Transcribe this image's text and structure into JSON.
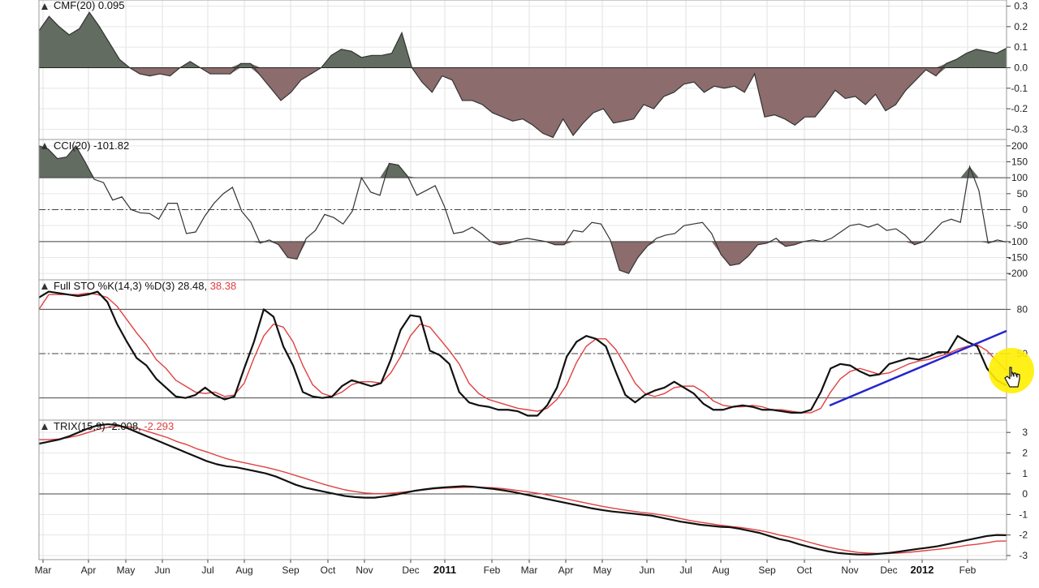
{
  "chart_data": [
    {
      "type": "area",
      "panel": "cmf",
      "title": "CMF(20)",
      "value_label": "0.095",
      "ylim": [
        -0.35,
        0.33
      ],
      "y_ticks": [
        "0.3",
        "0.2",
        "0.1",
        "0.0",
        "-0.1",
        "-0.2",
        "-0.3"
      ],
      "y_tick_values": [
        0.3,
        0.2,
        0.1,
        0.0,
        -0.1,
        -0.2,
        -0.3
      ],
      "positive_color": "#626c60",
      "negative_color": "#8c6c6c",
      "series": [
        {
          "values": [
            0.18,
            0.25,
            0.2,
            0.16,
            0.19,
            0.27,
            0.2,
            0.12,
            0.04,
            0.0,
            -0.03,
            -0.04,
            -0.03,
            -0.04,
            0.0,
            0.03,
            0.0,
            -0.03,
            -0.03,
            -0.03,
            0.02,
            0.02,
            -0.04,
            -0.1,
            -0.16,
            -0.12,
            -0.06,
            -0.03,
            0.0,
            0.06,
            0.09,
            0.08,
            0.05,
            0.06,
            0.06,
            0.07,
            0.17,
            0.0,
            -0.07,
            -0.12,
            -0.04,
            -0.06,
            -0.16,
            -0.16,
            -0.18,
            -0.22,
            -0.24,
            -0.26,
            -0.25,
            -0.28,
            -0.32,
            -0.34,
            -0.25,
            -0.33,
            -0.27,
            -0.22,
            -0.2,
            -0.27,
            -0.26,
            -0.25,
            -0.18,
            -0.2,
            -0.14,
            -0.12,
            -0.08,
            -0.07,
            -0.12,
            -0.09,
            -0.1,
            -0.09,
            -0.12,
            -0.03,
            -0.24,
            -0.23,
            -0.25,
            -0.28,
            -0.24,
            -0.24,
            -0.18,
            -0.11,
            -0.15,
            -0.14,
            -0.18,
            -0.13,
            -0.21,
            -0.18,
            -0.11,
            -0.06,
            -0.01,
            -0.04,
            0.02,
            0.04,
            0.07,
            0.09,
            0.08,
            0.07,
            0.095
          ]
        }
      ]
    },
    {
      "type": "area",
      "panel": "cci",
      "title": "CCI(20)",
      "value_label": "-101.82",
      "ylim": [
        -220,
        220
      ],
      "y_ticks": [
        "200",
        "150",
        "100",
        "50",
        "0",
        "-50",
        "-100",
        "-150",
        "-200"
      ],
      "y_tick_values": [
        200,
        150,
        100,
        50,
        0,
        -50,
        -100,
        -150,
        -200
      ],
      "reference_levels": [
        100,
        0,
        -100
      ],
      "fill_color": "#626c60",
      "negative_fill_color": "#8c6c6c",
      "series": [
        {
          "values": [
            200,
            190,
            160,
            165,
            200,
            150,
            95,
            85,
            30,
            40,
            0,
            -10,
            -12,
            -30,
            20,
            20,
            -75,
            -70,
            -20,
            20,
            50,
            70,
            -5,
            -40,
            -105,
            -95,
            -110,
            -150,
            -155,
            -90,
            -65,
            -15,
            -25,
            -45,
            -5,
            100,
            55,
            45,
            145,
            140,
            105,
            45,
            60,
            75,
            10,
            -75,
            -70,
            -55,
            -75,
            -100,
            -110,
            -105,
            -95,
            -90,
            -95,
            -100,
            -110,
            -110,
            -65,
            -70,
            -40,
            -45,
            -95,
            -190,
            -200,
            -150,
            -115,
            -90,
            -80,
            -75,
            -50,
            -45,
            -40,
            -75,
            -140,
            -175,
            -170,
            -145,
            -110,
            -105,
            -90,
            -115,
            -110,
            -100,
            -95,
            -100,
            -90,
            -70,
            -50,
            -45,
            -55,
            -45,
            -65,
            -60,
            -80,
            -110,
            -100,
            -70,
            -40,
            -30,
            -40,
            135,
            60,
            -105,
            -95,
            -101.82
          ]
        }
      ]
    },
    {
      "type": "line",
      "panel": "stochastic",
      "title": "Full STO %K(14,3) %D(3)",
      "value_label_k": "28.48",
      "value_label_d": "38.38",
      "ylim": [
        5,
        100
      ],
      "y_ticks": [
        "80",
        "50"
      ],
      "y_tick_values": [
        80,
        50
      ],
      "reference_levels": [
        80,
        50,
        20
      ],
      "series": [
        {
          "name": "%K",
          "color": "#111111",
          "values": [
            88,
            92,
            91,
            90,
            89,
            90,
            92,
            85,
            70,
            58,
            47,
            42,
            33,
            27,
            21,
            20,
            22,
            27,
            22,
            19,
            21,
            40,
            58,
            80,
            75,
            55,
            42,
            24,
            21,
            20,
            21,
            28,
            32,
            30,
            28,
            30,
            46,
            66,
            76,
            75,
            52,
            49,
            43,
            24,
            17,
            15,
            14,
            12,
            12,
            11,
            8,
            8,
            15,
            27,
            48,
            58,
            62,
            60,
            55,
            38,
            22,
            17,
            22,
            25,
            27,
            31,
            27,
            23,
            16,
            12,
            12,
            14,
            15,
            14,
            12,
            12,
            11,
            10,
            10,
            12,
            24,
            40,
            43,
            42,
            38,
            35,
            36,
            43,
            45,
            47,
            46,
            48,
            51,
            51,
            62,
            58,
            55,
            40,
            32,
            28.48
          ]
        },
        {
          "name": "%D",
          "color": "#e04040",
          "values": [
            80,
            90,
            90,
            90,
            90,
            91,
            90,
            88,
            82,
            73,
            64,
            56,
            46,
            40,
            32,
            28,
            24,
            23,
            24,
            21,
            22,
            30,
            47,
            62,
            70,
            68,
            58,
            42,
            29,
            23,
            21,
            24,
            29,
            31,
            31,
            30,
            37,
            48,
            62,
            70,
            68,
            60,
            52,
            43,
            30,
            23,
            19,
            17,
            15,
            13,
            12,
            11,
            13,
            19,
            29,
            44,
            55,
            60,
            60,
            53,
            42,
            30,
            23,
            21,
            23,
            27,
            28,
            28,
            24,
            18,
            15,
            14,
            14,
            15,
            14,
            12,
            12,
            11,
            10,
            10,
            13,
            24,
            33,
            38,
            40,
            38,
            36,
            37,
            40,
            43,
            45,
            46,
            48,
            50,
            53,
            55,
            56,
            52,
            45,
            38.38
          ]
        }
      ]
    },
    {
      "type": "line",
      "panel": "trix",
      "title": "TRIX(15,9)",
      "value_label_trix": "-2.008",
      "value_label_signal": "-2.293",
      "ylim": [
        -3.2,
        3.6
      ],
      "y_ticks": [
        "3",
        "2",
        "1",
        "0",
        "-1",
        "-2",
        "-3"
      ],
      "y_tick_values": [
        3,
        2,
        1,
        0,
        -1,
        -2,
        -3
      ],
      "reference_levels": [
        0
      ],
      "series": [
        {
          "name": "TRIX",
          "color": "#111111",
          "values": [
            2.45,
            2.55,
            2.65,
            2.8,
            3.0,
            3.2,
            3.35,
            3.4,
            3.35,
            3.2,
            3.0,
            2.8,
            2.6,
            2.4,
            2.2,
            2.0,
            1.8,
            1.6,
            1.45,
            1.35,
            1.3,
            1.2,
            1.1,
            1.0,
            0.85,
            0.65,
            0.45,
            0.3,
            0.2,
            0.1,
            0.0,
            -0.1,
            -0.15,
            -0.18,
            -0.18,
            -0.12,
            -0.05,
            0.05,
            0.15,
            0.22,
            0.28,
            0.32,
            0.35,
            0.38,
            0.35,
            0.3,
            0.25,
            0.18,
            0.1,
            0.0,
            -0.1,
            -0.2,
            -0.3,
            -0.4,
            -0.5,
            -0.6,
            -0.7,
            -0.78,
            -0.85,
            -0.9,
            -0.95,
            -1.0,
            -1.05,
            -1.15,
            -1.25,
            -1.35,
            -1.42,
            -1.5,
            -1.55,
            -1.6,
            -1.62,
            -1.7,
            -1.8,
            -1.9,
            -2.05,
            -2.2,
            -2.3,
            -2.45,
            -2.58,
            -2.7,
            -2.8,
            -2.88,
            -2.92,
            -2.95,
            -2.95,
            -2.92,
            -2.88,
            -2.82,
            -2.75,
            -2.68,
            -2.62,
            -2.55,
            -2.45,
            -2.35,
            -2.25,
            -2.15,
            -2.05,
            -2.0,
            -2.008
          ]
        },
        {
          "name": "Signal",
          "color": "#e04040",
          "values": [
            2.65,
            2.65,
            2.68,
            2.75,
            2.85,
            3.0,
            3.15,
            3.25,
            3.3,
            3.28,
            3.2,
            3.05,
            2.9,
            2.75,
            2.55,
            2.4,
            2.2,
            2.05,
            1.88,
            1.72,
            1.6,
            1.5,
            1.4,
            1.3,
            1.18,
            1.05,
            0.9,
            0.75,
            0.6,
            0.45,
            0.32,
            0.2,
            0.12,
            0.05,
            0.02,
            0.02,
            0.05,
            0.1,
            0.15,
            0.2,
            0.25,
            0.28,
            0.3,
            0.32,
            0.33,
            0.32,
            0.3,
            0.26,
            0.2,
            0.14,
            0.07,
            0.0,
            -0.1,
            -0.2,
            -0.3,
            -0.4,
            -0.5,
            -0.6,
            -0.68,
            -0.76,
            -0.83,
            -0.9,
            -0.95,
            -1.02,
            -1.1,
            -1.2,
            -1.3,
            -1.38,
            -1.45,
            -1.52,
            -1.58,
            -1.63,
            -1.7,
            -1.78,
            -1.88,
            -2.0,
            -2.1,
            -2.22,
            -2.35,
            -2.48,
            -2.6,
            -2.7,
            -2.78,
            -2.85,
            -2.88,
            -2.9,
            -2.9,
            -2.88,
            -2.85,
            -2.8,
            -2.75,
            -2.7,
            -2.65,
            -2.58,
            -2.5,
            -2.45,
            -2.38,
            -2.3,
            -2.293
          ]
        }
      ]
    }
  ],
  "x_axis": {
    "labels": [
      {
        "text": "Mar",
        "bold": false
      },
      {
        "text": "Apr",
        "bold": false
      },
      {
        "text": "May",
        "bold": false
      },
      {
        "text": "Jun",
        "bold": false
      },
      {
        "text": "Jul",
        "bold": false
      },
      {
        "text": "Aug",
        "bold": false
      },
      {
        "text": "Sep",
        "bold": false
      },
      {
        "text": "Oct",
        "bold": false
      },
      {
        "text": "Nov",
        "bold": false
      },
      {
        "text": "Dec",
        "bold": false
      },
      {
        "text": "2011",
        "bold": true
      },
      {
        "text": "Feb",
        "bold": false
      },
      {
        "text": "Mar",
        "bold": false
      },
      {
        "text": "Apr",
        "bold": false
      },
      {
        "text": "May",
        "bold": false
      },
      {
        "text": "Jun",
        "bold": false
      },
      {
        "text": "Jul",
        "bold": false
      },
      {
        "text": "Aug",
        "bold": false
      },
      {
        "text": "Sep",
        "bold": false
      },
      {
        "text": "Oct",
        "bold": false
      },
      {
        "text": "Nov",
        "bold": false
      },
      {
        "text": "Dec",
        "bold": false
      },
      {
        "text": "2012",
        "bold": true
      },
      {
        "text": "Feb",
        "bold": false
      }
    ]
  },
  "annotations": {
    "trendline_color": "#2424d0",
    "cursor_highlight_color": "#ffee00"
  }
}
